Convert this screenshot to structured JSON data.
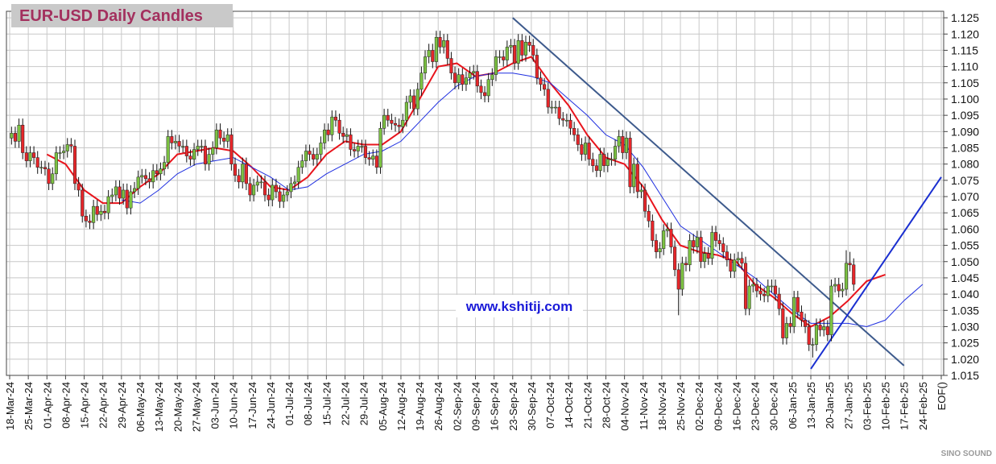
{
  "chart_data": {
    "type": "candlestick",
    "title": "EUR-USD Daily  Candles",
    "watermark": "www.kshitij.com",
    "logo": "SINO SOUND",
    "up_color": "#7cc242",
    "down_color": "#e8262a",
    "grid": true,
    "ylim": [
      1.015,
      1.127
    ],
    "yticks": [
      1.015,
      {
        "value": 1.02,
        "label": "1.020"
      },
      1.025,
      {
        "value": 1.03,
        "label": "1.030"
      },
      1.035,
      {
        "value": 1.04,
        "label": "1.040"
      },
      1.045,
      {
        "value": 1.05,
        "label": "1.050"
      },
      1.055,
      {
        "value": 1.06,
        "label": "1.060"
      },
      1.065,
      {
        "value": 1.07,
        "label": "1.070"
      },
      1.075,
      {
        "value": 1.08,
        "label": "1.080"
      },
      1.085,
      {
        "value": 1.09,
        "label": "1.090"
      },
      1.095,
      {
        "value": 1.1,
        "label": "1.100"
      },
      1.105,
      {
        "value": 1.11,
        "label": "1.110"
      },
      1.115,
      {
        "value": 1.12,
        "label": "1.120"
      },
      1.125
    ],
    "xticks": [
      "18-Mar-24",
      "25-Mar-24",
      "01-Apr-24",
      "08-Apr-24",
      "15-Apr-24",
      "22-Apr-24",
      "29-Apr-24",
      "06-May-24",
      "13-May-24",
      "20-May-24",
      "27-May-24",
      "03-Jun-24",
      "10-Jun-24",
      "17-Jun-24",
      "24-Jun-24",
      "01-Jul-24",
      "08-Jul-24",
      "15-Jul-24",
      "22-Jul-24",
      "29-Jul-24",
      "05-Aug-24",
      "12-Aug-24",
      "19-Aug-24",
      "26-Aug-24",
      "02-Sep-24",
      "09-Sep-24",
      "16-Sep-24",
      "23-Sep-24",
      "30-Sep-24",
      "07-Oct-24",
      "14-Oct-24",
      "21-Oct-24",
      "28-Oct-24",
      "04-Nov-24",
      "11-Nov-24",
      "18-Nov-24",
      "25-Nov-24",
      "02-Dec-24",
      "09-Dec-24",
      "16-Dec-24",
      "23-Dec-24",
      "30-Dec-24",
      "06-Jan-25",
      "13-Jan-25",
      "20-Jan-25",
      "27-Jan-25",
      "03-Feb-25",
      "10-Feb-25",
      "17-Feb-25",
      "24-Feb-25",
      "EOF()"
    ],
    "open": [
      1.088,
      1.0895,
      1.087,
      1.092,
      1.0835,
      1.081,
      1.0835,
      1.082,
      1.079,
      1.079,
      1.0785,
      1.074,
      1.077,
      1.0835,
      1.0835,
      1.084,
      1.086,
      1.0855,
      1.074,
      1.072,
      1.064,
      1.0625,
      1.062,
      1.067,
      1.0645,
      1.0655,
      1.065,
      1.07,
      1.0705,
      1.073,
      1.0695,
      1.072,
      1.0665,
      1.0715,
      1.0725,
      1.076,
      1.0765,
      1.0755,
      1.0745,
      1.078,
      1.077,
      1.0785,
      1.0805,
      1.0885,
      1.0865,
      1.087,
      1.0855,
      1.0855,
      1.0825,
      1.0815,
      1.0845,
      1.0855,
      1.0855,
      1.08,
      1.083,
      1.085,
      1.0905,
      1.088,
      1.087,
      1.089,
      1.08,
      1.0765,
      1.0745,
      1.08,
      1.074,
      1.0705,
      1.0735,
      1.0745,
      1.0745,
      1.0705,
      1.069,
      1.0735,
      1.0715,
      1.0685,
      1.0705,
      1.0715,
      1.074,
      1.0745,
      1.079,
      1.081,
      1.084,
      1.083,
      1.0815,
      1.083,
      1.0865,
      1.0905,
      1.089,
      1.0945,
      1.0935,
      1.0895,
      1.0885,
      1.089,
      1.0845,
      1.084,
      1.0855,
      1.0855,
      1.082,
      1.0815,
      1.0825,
      1.079,
      1.091,
      1.095,
      1.0935,
      1.0925,
      1.092,
      1.0915,
      1.0935,
      1.099,
      1.101,
      1.097,
      1.103,
      1.108,
      1.113,
      1.115,
      1.1115,
      1.119,
      1.116,
      1.118,
      1.1125,
      1.108,
      1.105,
      1.1075,
      1.1045,
      1.1065,
      1.108,
      1.1085,
      1.104,
      1.102,
      1.101,
      1.106,
      1.1075,
      1.113,
      1.113,
      1.112,
      1.116,
      1.1165,
      1.111,
      1.118,
      1.1135,
      1.1175,
      1.1165,
      1.1135,
      1.1065,
      1.1045,
      1.103,
      1.0975,
      1.0975,
      1.0975,
      1.094,
      1.0935,
      1.0935,
      1.091,
      1.089,
      1.086,
      1.083,
      1.0865,
      1.0815,
      1.0795,
      1.078,
      1.083,
      1.0795,
      1.0815,
      1.0815,
      1.0855,
      1.0885,
      1.0835,
      1.088,
      1.073,
      1.08,
      1.0715,
      1.072,
      1.0655,
      1.0625,
      1.0565,
      1.053,
      1.054,
      1.0595,
      1.06,
      1.0545,
      1.0475,
      1.0415,
      1.0495,
      1.049,
      1.0565,
      1.0545,
      1.0575,
      1.05,
      1.0525,
      1.051,
      1.059,
      1.0565,
      1.0555,
      1.053,
      1.0505,
      1.047,
      1.0505,
      1.051,
      1.0495,
      1.0355,
      1.0425,
      1.043,
      1.041,
      1.04,
      1.0395,
      1.0425,
      1.0425,
      1.04,
      1.0355,
      1.0265,
      1.031,
      1.03,
      1.039,
      1.0345,
      1.032,
      1.03,
      1.0245,
      1.0245,
      1.0305,
      1.029,
      1.03,
      1.0275,
      1.0425,
      1.043,
      1.041,
      1.0415,
      1.0495,
      1.049
    ],
    "high": [
      1.0915,
      1.0915,
      1.094,
      1.094,
      1.0855,
      1.0855,
      1.0855,
      1.084,
      1.081,
      1.081,
      1.0805,
      1.079,
      1.0855,
      1.0855,
      1.086,
      1.088,
      1.088,
      1.0875,
      1.076,
      1.074,
      1.066,
      1.0645,
      1.069,
      1.069,
      1.0675,
      1.0675,
      1.072,
      1.0725,
      1.075,
      1.075,
      1.074,
      1.074,
      1.0735,
      1.0745,
      1.078,
      1.0785,
      1.0785,
      1.0775,
      1.08,
      1.08,
      1.0805,
      1.0825,
      1.0905,
      1.0905,
      1.089,
      1.089,
      1.0875,
      1.0875,
      1.0845,
      1.0865,
      1.0875,
      1.0875,
      1.0875,
      1.085,
      1.087,
      1.0925,
      1.0925,
      1.09,
      1.091,
      1.091,
      1.082,
      1.0785,
      1.082,
      1.082,
      1.076,
      1.0755,
      1.0765,
      1.0765,
      1.0765,
      1.0725,
      1.0755,
      1.0755,
      1.0735,
      1.0725,
      1.0735,
      1.076,
      1.0765,
      1.081,
      1.083,
      1.086,
      1.086,
      1.085,
      1.085,
      1.0885,
      1.0925,
      1.0925,
      1.0965,
      1.0965,
      1.0955,
      1.0915,
      1.091,
      1.091,
      1.0865,
      1.0875,
      1.0875,
      1.0875,
      1.084,
      1.0845,
      1.0845,
      1.093,
      1.097,
      1.097,
      1.0955,
      1.0945,
      1.094,
      1.0955,
      1.101,
      1.103,
      1.103,
      1.105,
      1.11,
      1.115,
      1.117,
      1.117,
      1.121,
      1.121,
      1.12,
      1.12,
      1.1145,
      1.11,
      1.1095,
      1.1095,
      1.1085,
      1.11,
      1.1105,
      1.1105,
      1.106,
      1.104,
      1.108,
      1.1095,
      1.115,
      1.115,
      1.115,
      1.118,
      1.1185,
      1.1185,
      1.12,
      1.12,
      1.1195,
      1.1195,
      1.1185,
      1.1155,
      1.1085,
      1.1065,
      1.105,
      1.0995,
      1.0995,
      1.0995,
      1.096,
      1.0955,
      1.0955,
      1.093,
      1.091,
      1.088,
      1.0885,
      1.0885,
      1.0835,
      1.0815,
      1.085,
      1.085,
      1.0835,
      1.0835,
      1.0875,
      1.0905,
      1.0905,
      1.09,
      1.09,
      1.082,
      1.082,
      1.074,
      1.074,
      1.0675,
      1.0645,
      1.0585,
      1.056,
      1.0615,
      1.062,
      1.062,
      1.0565,
      1.0495,
      1.0515,
      1.0515,
      1.0585,
      1.0585,
      1.0595,
      1.0595,
      1.0545,
      1.0545,
      1.061,
      1.061,
      1.0585,
      1.0575,
      1.055,
      1.0525,
      1.0525,
      1.053,
      1.053,
      1.0515,
      1.0445,
      1.045,
      1.045,
      1.043,
      1.042,
      1.0445,
      1.0445,
      1.0445,
      1.042,
      1.0375,
      1.033,
      1.033,
      1.041,
      1.041,
      1.0365,
      1.034,
      1.032,
      1.0265,
      1.0325,
      1.0325,
      1.032,
      1.032,
      1.0445,
      1.045,
      1.045,
      1.0435,
      1.0535,
      1.053,
      1.051
    ],
    "low": [
      1.086,
      1.085,
      1.085,
      1.0815,
      1.079,
      1.079,
      1.08,
      1.077,
      1.077,
      1.0765,
      1.072,
      1.072,
      1.075,
      1.0815,
      1.0815,
      1.082,
      1.0835,
      1.072,
      1.07,
      1.062,
      1.0605,
      1.06,
      1.06,
      1.0625,
      1.0625,
      1.063,
      1.063,
      1.068,
      1.0685,
      1.0675,
      1.0675,
      1.0645,
      1.0645,
      1.0695,
      1.0705,
      1.074,
      1.0735,
      1.0725,
      1.0725,
      1.075,
      1.075,
      1.0765,
      1.0785,
      1.0845,
      1.0845,
      1.0835,
      1.0835,
      1.0805,
      1.0795,
      1.0795,
      1.0825,
      1.0835,
      1.078,
      1.078,
      1.081,
      1.083,
      1.086,
      1.085,
      1.085,
      1.078,
      1.0745,
      1.0725,
      1.0725,
      1.072,
      1.0685,
      1.0685,
      1.0715,
      1.0725,
      1.0685,
      1.067,
      1.067,
      1.0695,
      1.0665,
      1.0665,
      1.0685,
      1.0695,
      1.072,
      1.0725,
      1.077,
      1.079,
      1.081,
      1.0795,
      1.0795,
      1.081,
      1.0845,
      1.087,
      1.087,
      1.0915,
      1.0875,
      1.0865,
      1.0865,
      1.0825,
      1.082,
      1.082,
      1.0835,
      1.08,
      1.0795,
      1.0795,
      1.077,
      1.077,
      1.089,
      1.0915,
      1.0905,
      1.09,
      1.0895,
      1.0895,
      1.0915,
      1.097,
      1.095,
      1.095,
      1.101,
      1.106,
      1.111,
      1.1095,
      1.1095,
      1.114,
      1.114,
      1.1105,
      1.106,
      1.103,
      1.103,
      1.1025,
      1.1025,
      1.1045,
      1.106,
      1.102,
      1.1,
      1.099,
      1.099,
      1.104,
      1.1055,
      1.111,
      1.11,
      1.11,
      1.114,
      1.109,
      1.109,
      1.1115,
      1.1115,
      1.1145,
      1.1115,
      1.1045,
      1.1025,
      1.101,
      1.0955,
      1.0955,
      1.0955,
      1.092,
      1.0915,
      1.0915,
      1.089,
      1.087,
      1.084,
      1.081,
      1.081,
      1.0795,
      1.0775,
      1.076,
      1.076,
      1.0775,
      1.0775,
      1.0795,
      1.0795,
      1.0835,
      1.0815,
      1.0815,
      1.071,
      1.071,
      1.0695,
      1.0695,
      1.0635,
      1.0605,
      1.0545,
      1.051,
      1.051,
      1.052,
      1.0575,
      1.0525,
      1.0455,
      1.0335,
      1.0395,
      1.047,
      1.047,
      1.0525,
      1.0525,
      1.048,
      1.048,
      1.049,
      1.049,
      1.0545,
      1.0535,
      1.051,
      1.0485,
      1.045,
      1.045,
      1.0485,
      1.0475,
      1.0335,
      1.0335,
      1.0405,
      1.039,
      1.038,
      1.0375,
      1.0375,
      1.0405,
      1.038,
      1.0335,
      1.0245,
      1.0245,
      1.028,
      1.028,
      1.0325,
      1.03,
      1.028,
      1.0225,
      1.0205,
      1.0225,
      1.027,
      1.027,
      1.0255,
      1.0255,
      1.0405,
      1.039,
      1.039,
      1.0395,
      1.047,
      1.041
    ],
    "close": [
      1.0895,
      1.087,
      1.092,
      1.0835,
      1.081,
      1.0835,
      1.082,
      1.079,
      1.079,
      1.0785,
      1.074,
      1.077,
      1.0835,
      1.0835,
      1.084,
      1.086,
      1.0855,
      1.074,
      1.072,
      1.064,
      1.0625,
      1.062,
      1.067,
      1.0645,
      1.0655,
      1.065,
      1.07,
      1.0705,
      1.073,
      1.0695,
      1.072,
      1.0665,
      1.0715,
      1.0725,
      1.076,
      1.0765,
      1.0755,
      1.0745,
      1.078,
      1.077,
      1.0785,
      1.0805,
      1.0885,
      1.0865,
      1.087,
      1.0855,
      1.0855,
      1.0825,
      1.0815,
      1.0845,
      1.0855,
      1.0855,
      1.08,
      1.083,
      1.085,
      1.0905,
      1.088,
      1.087,
      1.089,
      1.08,
      1.0765,
      1.0745,
      1.08,
      1.074,
      1.0705,
      1.0735,
      1.0745,
      1.0745,
      1.0705,
      1.069,
      1.0735,
      1.0715,
      1.0685,
      1.0705,
      1.0715,
      1.074,
      1.0745,
      1.079,
      1.081,
      1.084,
      1.083,
      1.0815,
      1.083,
      1.0865,
      1.0905,
      1.089,
      1.0945,
      1.0935,
      1.0895,
      1.0885,
      1.089,
      1.0845,
      1.084,
      1.0855,
      1.0855,
      1.082,
      1.0815,
      1.0825,
      1.079,
      1.091,
      1.095,
      1.0935,
      1.0925,
      1.092,
      1.0915,
      1.0935,
      1.099,
      1.101,
      1.097,
      1.103,
      1.108,
      1.113,
      1.115,
      1.1115,
      1.119,
      1.116,
      1.118,
      1.1125,
      1.108,
      1.105,
      1.1075,
      1.1045,
      1.1065,
      1.108,
      1.1085,
      1.104,
      1.102,
      1.101,
      1.106,
      1.1075,
      1.113,
      1.113,
      1.112,
      1.116,
      1.1165,
      1.111,
      1.118,
      1.1135,
      1.1175,
      1.1165,
      1.1135,
      1.1065,
      1.1045,
      1.103,
      1.0975,
      1.0975,
      1.0975,
      1.094,
      1.0935,
      1.0935,
      1.091,
      1.089,
      1.086,
      1.083,
      1.0865,
      1.0815,
      1.0795,
      1.078,
      1.083,
      1.0795,
      1.0815,
      1.0815,
      1.0855,
      1.0885,
      1.0835,
      1.088,
      1.073,
      1.08,
      1.0715,
      1.072,
      1.0655,
      1.0625,
      1.0565,
      1.053,
      1.054,
      1.0595,
      1.06,
      1.0545,
      1.0475,
      1.0415,
      1.0495,
      1.049,
      1.0565,
      1.0545,
      1.0575,
      1.05,
      1.0525,
      1.051,
      1.059,
      1.0565,
      1.0555,
      1.053,
      1.0505,
      1.047,
      1.0505,
      1.051,
      1.0495,
      1.0355,
      1.0425,
      1.043,
      1.041,
      1.04,
      1.0395,
      1.0425,
      1.0425,
      1.04,
      1.0355,
      1.0265,
      1.031,
      1.03,
      1.039,
      1.0345,
      1.032,
      1.03,
      1.0245,
      1.0245,
      1.0305,
      1.029,
      1.03,
      1.0275,
      1.0425,
      1.043,
      1.041,
      1.0415,
      1.0495,
      1.049,
      1.043
    ],
    "series": [
      {
        "color": "#e8141c",
        "width": 2,
        "x": [
          "01-Apr-24",
          "08-Apr-24",
          "15-Apr-24",
          "22-Apr-24",
          "29-Apr-24",
          "06-May-24",
          "13-May-24",
          "20-May-24",
          "27-May-24",
          "03-Jun-24",
          "10-Jun-24",
          "17-Jun-24",
          "24-Jun-24",
          "01-Jul-24",
          "08-Jul-24",
          "15-Jul-24",
          "22-Jul-24",
          "29-Jul-24",
          "05-Aug-24",
          "12-Aug-24",
          "19-Aug-24",
          "26-Aug-24",
          "02-Sep-24",
          "09-Sep-24",
          "16-Sep-24",
          "23-Sep-24",
          "30-Sep-24",
          "07-Oct-24",
          "14-Oct-24",
          "21-Oct-24",
          "28-Oct-24",
          "04-Nov-24",
          "11-Nov-24",
          "18-Nov-24",
          "25-Nov-24",
          "02-Dec-24",
          "09-Dec-24",
          "16-Dec-24",
          "23-Dec-24",
          "30-Dec-24",
          "06-Jan-25",
          "13-Jan-25",
          "20-Jan-25",
          "27-Jan-25",
          "03-Feb-25",
          "10-Feb-25"
        ],
        "values": [
          1.083,
          1.08,
          1.072,
          1.068,
          1.068,
          1.073,
          1.077,
          1.083,
          1.084,
          1.085,
          1.084,
          1.079,
          1.073,
          1.072,
          1.076,
          1.083,
          1.087,
          1.086,
          1.086,
          1.09,
          1.1,
          1.11,
          1.111,
          1.107,
          1.108,
          1.111,
          1.113,
          1.105,
          1.098,
          1.089,
          1.082,
          1.08,
          1.073,
          1.063,
          1.055,
          1.053,
          1.052,
          1.05,
          1.043,
          1.039,
          1.034,
          1.03,
          1.033,
          1.038,
          1.044,
          1.046
        ]
      },
      {
        "color": "#1f2fe0",
        "width": 1,
        "x": [
          "29-Apr-24",
          "06-May-24",
          "13-May-24",
          "20-May-24",
          "27-May-24",
          "03-Jun-24",
          "10-Jun-24",
          "17-Jun-24",
          "24-Jun-24",
          "01-Jul-24",
          "08-Jul-24",
          "15-Jul-24",
          "22-Jul-24",
          "29-Jul-24",
          "05-Aug-24",
          "12-Aug-24",
          "19-Aug-24",
          "26-Aug-24",
          "02-Sep-24",
          "09-Sep-24",
          "16-Sep-24",
          "23-Sep-24",
          "30-Sep-24",
          "07-Oct-24",
          "14-Oct-24",
          "21-Oct-24",
          "28-Oct-24",
          "04-Nov-24",
          "11-Nov-24",
          "18-Nov-24",
          "25-Nov-24",
          "02-Dec-24",
          "09-Dec-24",
          "16-Dec-24",
          "23-Dec-24",
          "30-Dec-24",
          "06-Jan-25",
          "13-Jan-25",
          "20-Jan-25",
          "27-Jan-25",
          "03-Feb-25",
          "10-Feb-25",
          "17-Feb-25",
          "24-Feb-25"
        ],
        "values": [
          1.069,
          1.068,
          1.072,
          1.077,
          1.08,
          1.081,
          1.082,
          1.079,
          1.076,
          1.072,
          1.073,
          1.077,
          1.08,
          1.083,
          1.084,
          1.087,
          1.093,
          1.099,
          1.104,
          1.107,
          1.108,
          1.108,
          1.107,
          1.105,
          1.1,
          1.095,
          1.089,
          1.086,
          1.079,
          1.07,
          1.061,
          1.057,
          1.053,
          1.049,
          1.045,
          1.04,
          1.035,
          1.031,
          1.031,
          1.031,
          1.03,
          1.032,
          1.038,
          1.043
        ]
      }
    ],
    "trend_lines": [
      {
        "color": "#3d5a8c",
        "x1": "23-Sep-24",
        "y1": 1.125,
        "x2": "17-Feb-25",
        "y2": 1.018
      },
      {
        "color": "#1a2fd0",
        "x1": "13-Jan-25",
        "y1": 1.017,
        "x2": "EOF()",
        "y2": 1.076
      }
    ]
  }
}
